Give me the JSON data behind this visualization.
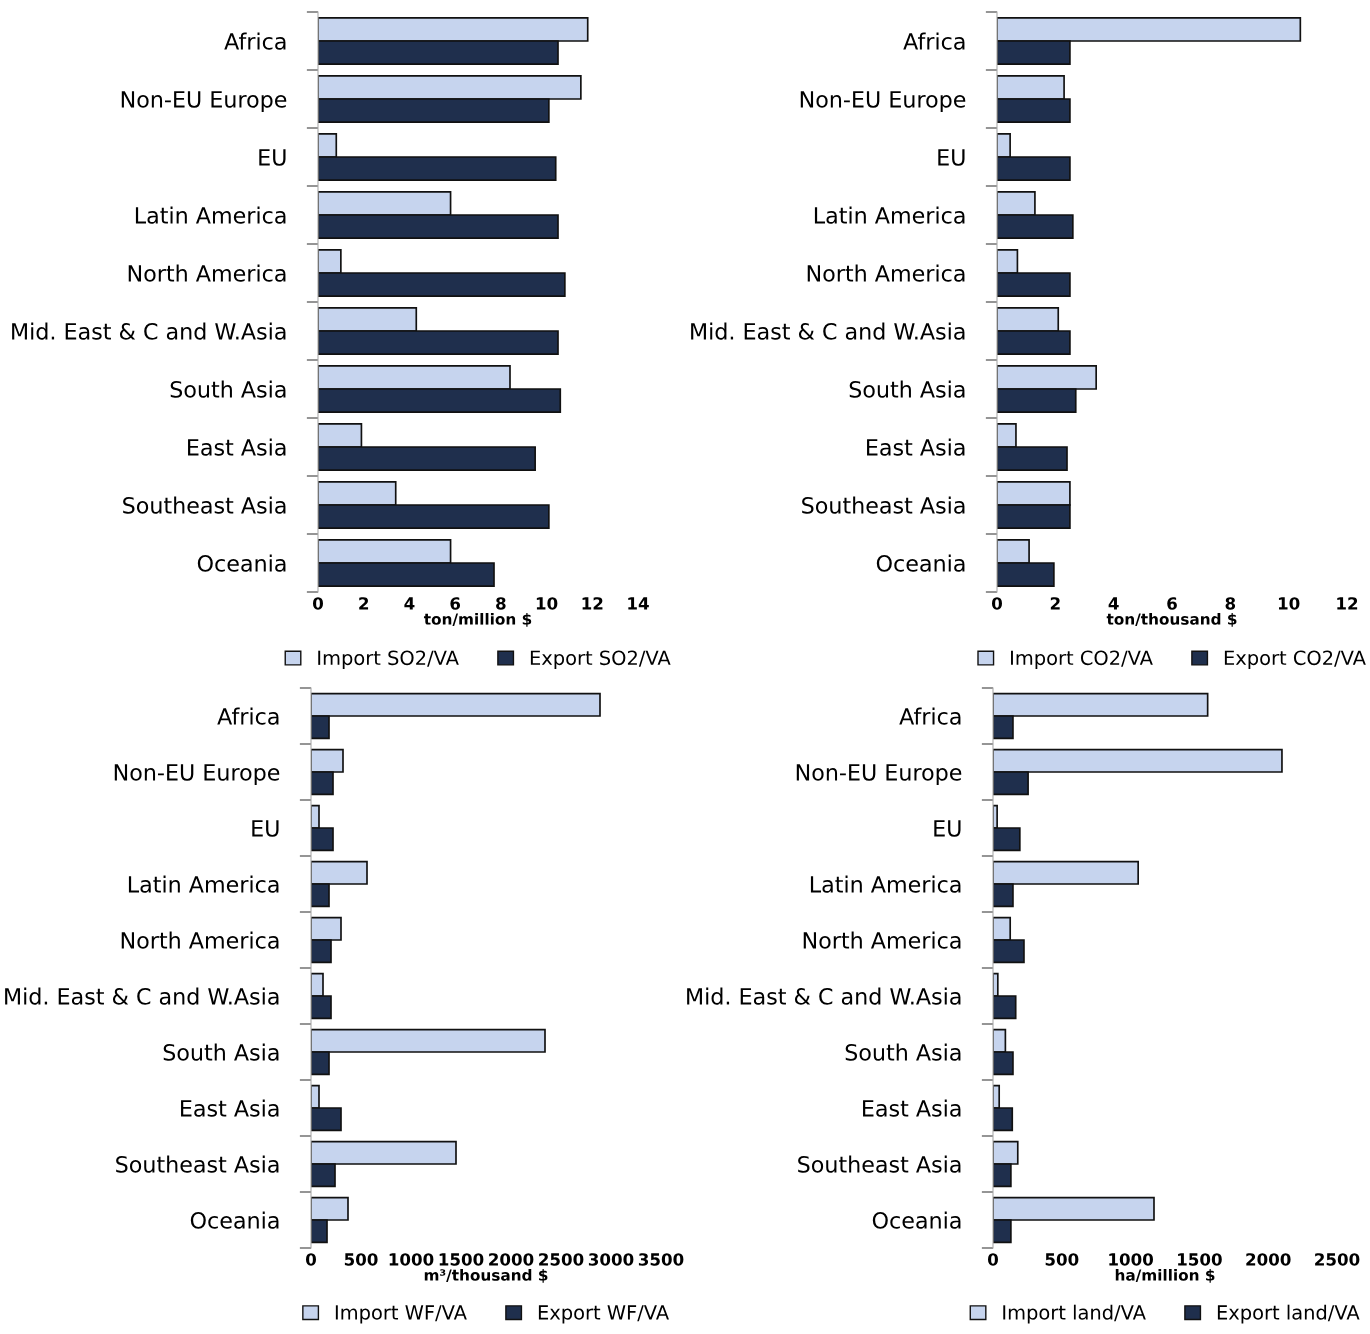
{
  "chart_data": [
    {
      "type": "bar",
      "orientation": "horizontal",
      "categories": [
        "Africa",
        "Non-EU Europe",
        "EU",
        "Latin America",
        "North America",
        "Mid. East & C and W.Asia",
        "South Asia",
        "East Asia",
        "Southeast Asia",
        "Oceania"
      ],
      "xlabel": "ton/million $",
      "xlim": [
        0,
        14
      ],
      "xticks": [
        0,
        2,
        4,
        6,
        8,
        10,
        12,
        14
      ],
      "legend": "bottom",
      "grid": false,
      "series": [
        {
          "name": "Import SO2/VA",
          "color": "#c6d4ee",
          "values": [
            11.8,
            11.5,
            0.8,
            5.8,
            1.0,
            4.3,
            8.4,
            1.9,
            3.4,
            5.8
          ]
        },
        {
          "name": "Export SO2/VA",
          "color": "#1f2f4d",
          "values": [
            10.5,
            10.1,
            10.4,
            10.5,
            10.8,
            10.5,
            10.6,
            9.5,
            10.1,
            7.7
          ]
        }
      ]
    },
    {
      "type": "bar",
      "orientation": "horizontal",
      "categories": [
        "Africa",
        "Non-EU Europe",
        "EU",
        "Latin America",
        "North America",
        "Mid. East & C and W.Asia",
        "South Asia",
        "East Asia",
        "Southeast Asia",
        "Oceania"
      ],
      "xlabel": "ton/thousand $",
      "xlim": [
        0,
        12
      ],
      "xticks": [
        0,
        2,
        4,
        6,
        8,
        10,
        12
      ],
      "legend": "bottom",
      "grid": false,
      "series": [
        {
          "name": "Import CO2/VA",
          "color": "#c6d4ee",
          "values": [
            10.4,
            2.3,
            0.45,
            1.3,
            0.7,
            2.1,
            3.4,
            0.65,
            2.5,
            1.1
          ]
        },
        {
          "name": "Export CO2/VA",
          "color": "#1f2f4d",
          "values": [
            2.5,
            2.5,
            2.5,
            2.6,
            2.5,
            2.5,
            2.7,
            2.4,
            2.5,
            1.95
          ]
        }
      ]
    },
    {
      "type": "bar",
      "orientation": "horizontal",
      "categories": [
        "Africa",
        "Non-EU Europe",
        "EU",
        "Latin America",
        "North America",
        "Mid. East & C and W.Asia",
        "South Asia",
        "East Asia",
        "Southeast Asia",
        "Oceania"
      ],
      "xlabel": "m³/thousand $",
      "xlim": [
        0,
        3500
      ],
      "xticks": [
        0,
        500,
        1000,
        1500,
        2000,
        2500,
        3000,
        3500
      ],
      "legend": "bottom",
      "grid": false,
      "series": [
        {
          "name": "Import WF/VA",
          "color": "#c6d4ee",
          "values": [
            2890,
            320,
            80,
            560,
            300,
            120,
            2340,
            80,
            1450,
            370
          ]
        },
        {
          "name": "Export WF/VA",
          "color": "#1f2f4d",
          "values": [
            180,
            220,
            220,
            180,
            200,
            200,
            180,
            300,
            240,
            160
          ]
        }
      ]
    },
    {
      "type": "bar",
      "orientation": "horizontal",
      "categories": [
        "Africa",
        "Non-EU Europe",
        "EU",
        "Latin America",
        "North America",
        "Mid. East & C and W.Asia",
        "South Asia",
        "East Asia",
        "Southeast Asia",
        "Oceania"
      ],
      "xlabel": "ha/million $",
      "xlim": [
        0,
        2500
      ],
      "xticks": [
        0,
        500,
        1000,
        1500,
        2000,
        2500
      ],
      "legend": "bottom",
      "grid": false,
      "series": [
        {
          "name": "Import land/VA",
          "color": "#c6d4ee",
          "values": [
            1560,
            2100,
            30,
            1055,
            125,
            35,
            90,
            45,
            180,
            1170
          ]
        },
        {
          "name": "Export land/VA",
          "color": "#1f2f4d",
          "values": [
            145,
            255,
            195,
            145,
            225,
            165,
            145,
            140,
            130,
            130
          ]
        }
      ]
    }
  ]
}
